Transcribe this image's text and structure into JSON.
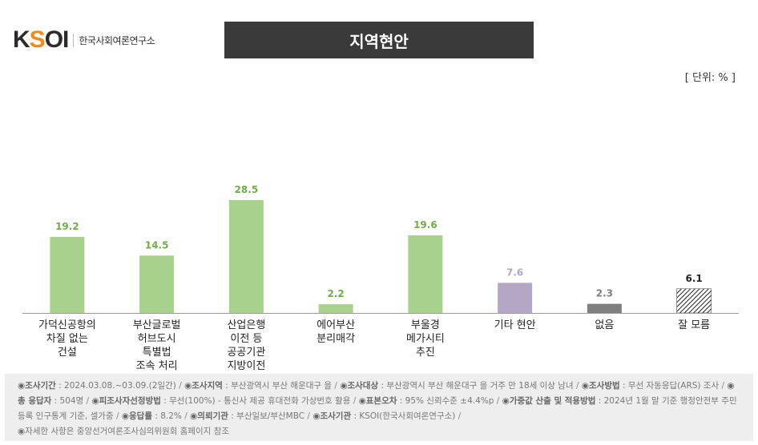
{
  "logo": {
    "mark_left": "K",
    "mark_accent": "S",
    "mark_right": "OI",
    "org_name": "한국사회여론연구소"
  },
  "title": "지역현안",
  "unit_label": "[ 단위: % ]",
  "colors": {
    "bar_green": "#a9d18e",
    "bar_purple": "#b4a7c6",
    "bar_gray": "#7f7f7f",
    "label_green": "#70ad47",
    "label_purple": "#b4a7c6",
    "label_gray": "#7f7f7f",
    "label_black": "#222222"
  },
  "chart_data": {
    "type": "bar",
    "title": "지역현안",
    "unit": "%",
    "ylim": [
      0,
      35
    ],
    "grid": false,
    "categories": [
      [
        "가덕신공항의",
        "차질 없는",
        "건설"
      ],
      [
        "부산글로벌",
        "허브도시",
        "특별법",
        "조속 처리"
      ],
      [
        "산업은행",
        "이전 등",
        "공공기관",
        "지방이전"
      ],
      [
        "에어부산",
        "분리매각"
      ],
      [
        "부울경",
        "메가시티",
        "추진"
      ],
      [
        "기타 현안"
      ],
      [
        "없음"
      ],
      [
        "잘 모름"
      ]
    ],
    "values": [
      19.2,
      14.5,
      28.5,
      2.2,
      19.6,
      7.6,
      2.3,
      6.1
    ],
    "value_labels": [
      "19.2",
      "14.5",
      "28.5",
      "2.2",
      "19.6",
      "7.6",
      "2.3",
      "6.1"
    ],
    "fill_types": [
      "green",
      "green",
      "green",
      "green",
      "green",
      "purple",
      "gray",
      "hatch"
    ]
  },
  "footer": {
    "period_label": "◉조사기간",
    "period_value": " : 2024.03.08.~03.09.(2일간)",
    "area_label": "◉조사지역",
    "area_value": " : 부산광역시 부산 해운대구 을",
    "target_label": "◉조사대상",
    "target_value": " : 부산광역시 부산 해운대구 을 거주 만 18세 이상 남녀",
    "method_label": "◉조사방법",
    "method_value": " : 무선 자동응답(ARS) 조사",
    "respondents_label": "◉총 응답자",
    "respondents_value": " : 504명",
    "frame_label": "◉피조사자선정방법",
    "frame_value": " : 무선(100%) - 통신사 제공 휴대전화 가상번호 활용",
    "error_label": "◉표본오차",
    "error_value": " : 95% 신뢰수준 ±4.4%p",
    "weight_label": "◉가중값 산출 및 적용방법",
    "weight_value": " : 2024년 1월 말 기준 행정안전부 주민등록 인구통계 기준, 셀가중",
    "response_label": "◉응답률",
    "response_value": " : 8.2%",
    "client_label": "◉의뢰기관",
    "client_value": " : 부산일보/부산MBC",
    "agency_label": "◉조사기관",
    "agency_value": " : KSOI(한국사회여론연구소)",
    "note": "◉자세한 사항은 중앙선거여론조사심의위원회 홈페이지 참조"
  }
}
